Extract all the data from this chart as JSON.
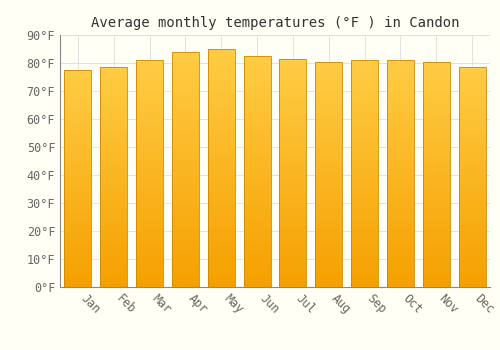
{
  "title": "Average monthly temperatures (°F ) in Candon",
  "months": [
    "Jan",
    "Feb",
    "Mar",
    "Apr",
    "May",
    "Jun",
    "Jul",
    "Aug",
    "Sep",
    "Oct",
    "Nov",
    "Dec"
  ],
  "values": [
    77.5,
    78.5,
    81.0,
    84.0,
    85.0,
    82.5,
    81.5,
    80.5,
    81.0,
    81.0,
    80.5,
    78.5
  ],
  "ylim": [
    0,
    90
  ],
  "yticks": [
    0,
    10,
    20,
    30,
    40,
    50,
    60,
    70,
    80,
    90
  ],
  "ytick_labels": [
    "0°F",
    "10°F",
    "20°F",
    "30°F",
    "40°F",
    "50°F",
    "60°F",
    "70°F",
    "80°F",
    "90°F"
  ],
  "bar_color_top": "#FFCC44",
  "bar_color_bottom": "#F5A000",
  "bar_edge_color": "#CC8800",
  "background_color": "#FFFFF5",
  "grid_color": "#DDDDDD",
  "title_fontsize": 10,
  "tick_fontsize": 8.5,
  "bar_width": 0.75,
  "label_rotation": -45,
  "label_ha": "left"
}
